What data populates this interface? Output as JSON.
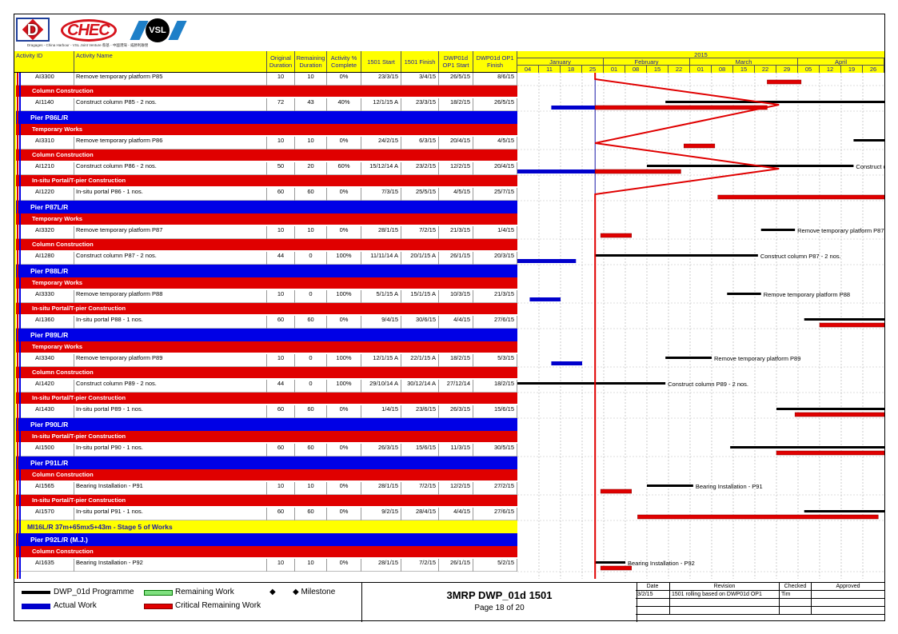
{
  "company_line": "Dragages - China Harbour - VSL Joint Venture  蔡基 - 中國港灣 - 威勝利聯營",
  "logos": {
    "d": "D",
    "chec": "CHEC",
    "vsl": "VSL"
  },
  "columns": [
    {
      "key": "id",
      "label": "Activity ID"
    },
    {
      "key": "name",
      "label": "Activity Name"
    },
    {
      "key": "od",
      "label": "Original Duration"
    },
    {
      "key": "rd",
      "label": "Remaining Duration"
    },
    {
      "key": "pct",
      "label": "Activity % Complete"
    },
    {
      "key": "s1501",
      "label": "1501 Start"
    },
    {
      "key": "f1501",
      "label": "1501 Finish"
    },
    {
      "key": "ops",
      "label": "DWP01d OP1 Start"
    },
    {
      "key": "opf",
      "label": "DWP01d OP1 Finish"
    }
  ],
  "timescale": {
    "year": "2015",
    "months": [
      "January",
      "February",
      "March",
      "April"
    ],
    "weeks": [
      "04",
      "11",
      "18",
      "25",
      "01",
      "08",
      "15",
      "22",
      "01",
      "08",
      "15",
      "22",
      "29",
      "05",
      "12",
      "19",
      "26"
    ]
  },
  "rows": [
    {
      "type": "activity",
      "id": "AI3300",
      "name": "Remove temporary platform P85",
      "od": "10",
      "rd": "10",
      "pct": "0%",
      "s1501": "23/3/15",
      "f1501": "3/4/15",
      "ops": "26/5/15",
      "opf": "8/6/15"
    },
    {
      "type": "band",
      "style": "red",
      "label": "Column Construction"
    },
    {
      "type": "activity",
      "id": "AI1140",
      "name": "Construct column P85 - 2 nos.",
      "od": "72",
      "rd": "43",
      "pct": "40%",
      "s1501": "12/1/15 A",
      "f1501": "23/3/15",
      "ops": "18/2/15",
      "opf": "26/5/15"
    },
    {
      "type": "band",
      "style": "blue",
      "label": "Pier P86L/R"
    },
    {
      "type": "band",
      "style": "red",
      "label": "Temporary Works"
    },
    {
      "type": "activity",
      "id": "AI3310",
      "name": "Remove temporary platform P86",
      "od": "10",
      "rd": "10",
      "pct": "0%",
      "s1501": "24/2/15",
      "f1501": "6/3/15",
      "ops": "20/4/15",
      "opf": "4/5/15"
    },
    {
      "type": "band",
      "style": "red",
      "label": "Column Construction"
    },
    {
      "type": "activity",
      "id": "AI1210",
      "name": "Construct column P86 - 2 nos.",
      "od": "50",
      "rd": "20",
      "pct": "60%",
      "s1501": "15/12/14 A",
      "f1501": "23/2/15",
      "ops": "12/2/15",
      "opf": "20/4/15"
    },
    {
      "type": "band",
      "style": "red",
      "label": "In-situ Portal/T-pier Construction"
    },
    {
      "type": "activity",
      "id": "AI1220",
      "name": "In-situ portal P86 - 1 nos.",
      "od": "60",
      "rd": "60",
      "pct": "0%",
      "s1501": "7/3/15",
      "f1501": "25/5/15",
      "ops": "4/5/15",
      "opf": "25/7/15"
    },
    {
      "type": "band",
      "style": "blue",
      "label": "Pier P87L/R"
    },
    {
      "type": "band",
      "style": "red",
      "label": "Temporary Works"
    },
    {
      "type": "activity",
      "id": "AI3320",
      "name": "Remove temporary platform P87",
      "od": "10",
      "rd": "10",
      "pct": "0%",
      "s1501": "28/1/15",
      "f1501": "7/2/15",
      "ops": "21/3/15",
      "opf": "1/4/15"
    },
    {
      "type": "band",
      "style": "red",
      "label": "Column Construction"
    },
    {
      "type": "activity",
      "id": "AI1280",
      "name": "Construct column P87 - 2 nos.",
      "od": "44",
      "rd": "0",
      "pct": "100%",
      "s1501": "11/11/14 A",
      "f1501": "20/1/15 A",
      "ops": "26/1/15",
      "opf": "20/3/15"
    },
    {
      "type": "band",
      "style": "blue",
      "label": "Pier P88L/R"
    },
    {
      "type": "band",
      "style": "red",
      "label": "Temporary Works"
    },
    {
      "type": "activity",
      "id": "AI3330",
      "name": "Remove temporary platform P88",
      "od": "10",
      "rd": "0",
      "pct": "100%",
      "s1501": "5/1/15 A",
      "f1501": "15/1/15 A",
      "ops": "10/3/15",
      "opf": "21/3/15"
    },
    {
      "type": "band",
      "style": "red",
      "label": "In-situ Portal/T-pier Construction"
    },
    {
      "type": "activity",
      "id": "AI1360",
      "name": "In-situ portal P88 - 1 nos.",
      "od": "60",
      "rd": "60",
      "pct": "0%",
      "s1501": "9/4/15",
      "f1501": "30/6/15",
      "ops": "4/4/15",
      "opf": "27/6/15"
    },
    {
      "type": "band",
      "style": "blue",
      "label": "Pier P89L/R"
    },
    {
      "type": "band",
      "style": "red",
      "label": "Temporary Works"
    },
    {
      "type": "activity",
      "id": "AI3340",
      "name": "Remove temporary platform P89",
      "od": "10",
      "rd": "0",
      "pct": "100%",
      "s1501": "12/1/15 A",
      "f1501": "22/1/15 A",
      "ops": "18/2/15",
      "opf": "5/3/15"
    },
    {
      "type": "band",
      "style": "red",
      "label": "Column Construction"
    },
    {
      "type": "activity",
      "id": "AI1420",
      "name": "Construct column P89 - 2 nos.",
      "od": "44",
      "rd": "0",
      "pct": "100%",
      "s1501": "29/10/14 A",
      "f1501": "30/12/14 A",
      "ops": "27/12/14",
      "opf": "18/2/15"
    },
    {
      "type": "band",
      "style": "red",
      "label": "In-situ Portal/T-pier Construction"
    },
    {
      "type": "activity",
      "id": "AI1430",
      "name": "In-situ portal P89 - 1 nos.",
      "od": "60",
      "rd": "60",
      "pct": "0%",
      "s1501": "1/4/15",
      "f1501": "23/6/15",
      "ops": "26/3/15",
      "opf": "15/6/15"
    },
    {
      "type": "band",
      "style": "blue",
      "label": "Pier P90L/R"
    },
    {
      "type": "band",
      "style": "red",
      "label": "In-situ Portal/T-pier Construction"
    },
    {
      "type": "activity",
      "id": "AI1500",
      "name": "In-situ portal P90 - 1 nos.",
      "od": "60",
      "rd": "60",
      "pct": "0%",
      "s1501": "26/3/15",
      "f1501": "15/6/15",
      "ops": "11/3/15",
      "opf": "30/5/15"
    },
    {
      "type": "band",
      "style": "blue",
      "label": "Pier P91L/R"
    },
    {
      "type": "band",
      "style": "red",
      "label": "Column Construction"
    },
    {
      "type": "activity",
      "id": "AI1565",
      "name": "Bearing Installation - P91",
      "od": "10",
      "rd": "10",
      "pct": "0%",
      "s1501": "28/1/15",
      "f1501": "7/2/15",
      "ops": "12/2/15",
      "opf": "27/2/15"
    },
    {
      "type": "band",
      "style": "red",
      "label": "In-situ Portal/T-pier Construction"
    },
    {
      "type": "activity",
      "id": "AI1570",
      "name": "In-situ portal P91 - 1 nos.",
      "od": "60",
      "rd": "60",
      "pct": "0%",
      "s1501": "9/2/15",
      "f1501": "28/4/15",
      "ops": "4/4/15",
      "opf": "27/6/15"
    },
    {
      "type": "band",
      "style": "yellow",
      "label": "MI16L/R 37m+65mx5+43m - Stage 5 of Works"
    },
    {
      "type": "band",
      "style": "blue",
      "label": "Pier P92L/R (M.J.)"
    },
    {
      "type": "band",
      "style": "red",
      "label": "Column Construction"
    },
    {
      "type": "activity",
      "id": "AI1635",
      "name": "Bearing Installation - P92",
      "od": "10",
      "rd": "10",
      "pct": "0%",
      "s1501": "28/1/15",
      "f1501": "7/2/15",
      "ops": "26/1/15",
      "opf": "5/2/15"
    }
  ],
  "bar_labels": {
    "AI1210": "Construct c",
    "AI3320": "Remove temporary platform P87",
    "AI1280": "Construct column P87 - 2 nos.",
    "AI3330": "Remove temporary platform P88",
    "AI3340": "Remove temporary platform P89",
    "AI1420": "Construct column P89 - 2 nos.",
    "AI1565": "Bearing Installation - P91",
    "AI1635": "Bearing Installation - P92"
  },
  "legend": {
    "programme": "DWP_01d Programme",
    "actual": "Actual Work",
    "remaining": "Remaining Work",
    "critical": "Critical Remaining Work",
    "milestone_symbol": "◆",
    "milestone": "◆ Milestone"
  },
  "title": {
    "main": "3MRP DWP_01d 1501",
    "page": "Page 18 of 20"
  },
  "revision": {
    "headers": [
      "Date",
      "Revision",
      "Checked",
      "Approved"
    ],
    "row": [
      "3/2/15",
      "1501 rolling based on DWP01d OP1",
      "Tim",
      ""
    ]
  },
  "colors": {
    "yellow": "#ffff00",
    "red": "#e00000",
    "blue": "#0000e6",
    "header_text": "#1a1aa8",
    "legend_remaining": "#7fe07f"
  }
}
